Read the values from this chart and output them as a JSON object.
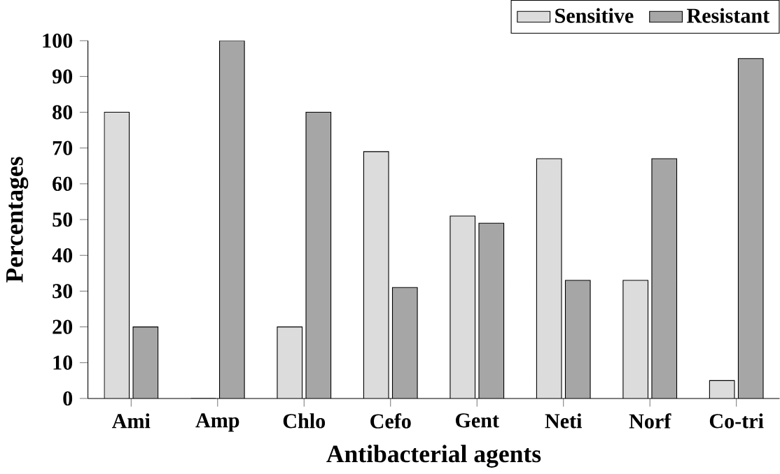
{
  "chart_data": {
    "type": "bar",
    "xlabel": "Antibacterial agents",
    "ylabel": "Percentages",
    "categories": [
      "Ami",
      "Amp",
      "Chlo",
      "Cefo",
      "Gent",
      "Neti",
      "Norf",
      "Co-tri"
    ],
    "series": [
      {
        "name": "Sensitive",
        "color": "#dcdcdc",
        "values": [
          80,
          0,
          20,
          69,
          51,
          67,
          33,
          5
        ]
      },
      {
        "name": "Resistant",
        "color": "#a6a6a6",
        "values": [
          20,
          100,
          80,
          31,
          49,
          33,
          67,
          95
        ]
      }
    ],
    "ylim": [
      0,
      100
    ],
    "yticks": [
      0,
      10,
      20,
      30,
      40,
      50,
      60,
      70,
      80,
      90,
      100
    ],
    "legend": "top right",
    "grid": false
  }
}
